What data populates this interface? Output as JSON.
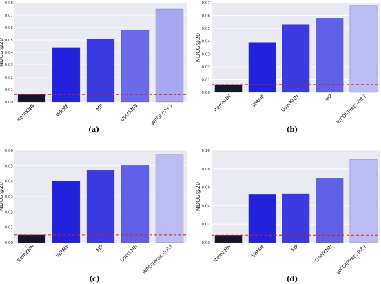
{
  "chart_data": [
    {
      "type": "bar",
      "caption": "(a)",
      "ylabel": "NDCG@20",
      "categories": [
        "ItemKNN",
        "WRMF",
        "MP",
        "UserKNN",
        "WPOI (Vis.)"
      ],
      "values": [
        0.006,
        0.044,
        0.051,
        0.058,
        0.075
      ],
      "colors": [
        "#14142b",
        "#2222dd",
        "#3a3ae0",
        "#6a6aea",
        "#a8a8f2"
      ],
      "ylim": [
        0,
        0.08
      ],
      "yticks": [
        "0.00",
        "0.01",
        "0.02",
        "0.03",
        "0.04",
        "0.05",
        "0.06",
        "0.07",
        "0.08"
      ],
      "baseline": 0.006
    },
    {
      "type": "bar",
      "caption": "(b)",
      "ylabel": "NDCG@20",
      "categories": [
        "ItemKNN",
        "WRMF",
        "UserKNN",
        "MP",
        "WPOI(Prec.-Int.)"
      ],
      "values": [
        0.006,
        0.039,
        0.053,
        0.058,
        0.068
      ],
      "colors": [
        "#14142b",
        "#2222dd",
        "#3a3ae0",
        "#6060e8",
        "#bcbcf4"
      ],
      "ylim": [
        0,
        0.07
      ],
      "yticks": [
        "0.00",
        "0.01",
        "0.02",
        "0.03",
        "0.04",
        "0.05",
        "0.06",
        "0.07"
      ],
      "baseline": 0.006
    },
    {
      "type": "bar",
      "caption": "(c)",
      "ylabel": "NDCG@20",
      "categories": [
        "ItemKNN",
        "WRMF",
        "MP",
        "UserKNN",
        "WPOI(Prec.-Int.)"
      ],
      "values": [
        0.005,
        0.04,
        0.047,
        0.05,
        0.057
      ],
      "colors": [
        "#14142b",
        "#2222dd",
        "#3a3ae0",
        "#6060e8",
        "#bcbcf4"
      ],
      "ylim": [
        0,
        0.06
      ],
      "yticks": [
        "0.00",
        "0.01",
        "0.02",
        "0.03",
        "0.04",
        "0.05",
        "0.06"
      ],
      "baseline": 0.005
    },
    {
      "type": "bar",
      "caption": "(d)",
      "ylabel": "NDCG@20",
      "categories": [
        "ItemKNN",
        "WRMF",
        "MP",
        "UserKNN",
        "WPOI(Prec.-Int.)"
      ],
      "values": [
        0.008,
        0.052,
        0.053,
        0.07,
        0.09
      ],
      "colors": [
        "#14142b",
        "#2222dd",
        "#3a3ae0",
        "#6060e8",
        "#bcbcf4"
      ],
      "ylim": [
        0,
        0.1
      ],
      "yticks": [
        "0.00",
        "0.02",
        "0.04",
        "0.06",
        "0.08",
        "0.10"
      ],
      "baseline": 0.008
    }
  ]
}
